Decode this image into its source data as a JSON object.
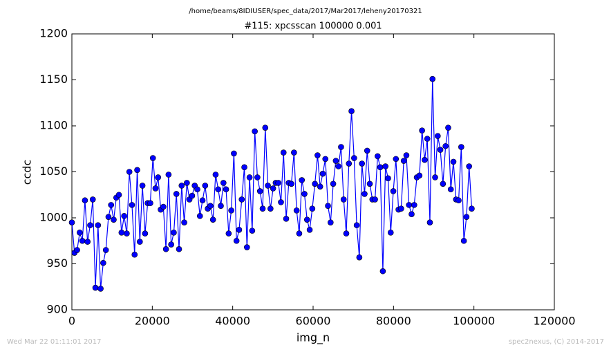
{
  "header": "/home/beams/8IDIUSER/spec_data/2017/Mar2017/leheny20170321",
  "footer": {
    "left": "Wed Mar 22 01:11:01 2017",
    "right": "spec2nexus, (C) 2014-2017"
  },
  "chart_data": {
    "type": "line",
    "title": "#115: xpcsscan 100000 0.001",
    "x_label": "img_n",
    "y_label": "ccdc",
    "marker": "circle",
    "x": [
      0,
      650,
      1300,
      1950,
      2600,
      3250,
      3900,
      4550,
      5200,
      5850,
      6500,
      7150,
      7800,
      8450,
      9100,
      9750,
      10400,
      11050,
      11700,
      12350,
      13000,
      13650,
      14300,
      14950,
      15600,
      16250,
      16900,
      17550,
      18200,
      18850,
      19500,
      20150,
      20800,
      21450,
      22100,
      22750,
      23400,
      24050,
      24700,
      25350,
      26000,
      26650,
      27300,
      27950,
      28600,
      29250,
      29900,
      30550,
      31200,
      31850,
      32500,
      33150,
      33800,
      34450,
      35100,
      35750,
      36400,
      37050,
      37700,
      38350,
      39000,
      39650,
      40300,
      40950,
      41600,
      42250,
      42900,
      43550,
      44200,
      44850,
      45500,
      46150,
      46800,
      47450,
      48100,
      48750,
      49400,
      50050,
      50700,
      51350,
      52000,
      52650,
      53300,
      53950,
      54600,
      55250,
      55900,
      56550,
      57200,
      57850,
      58500,
      59150,
      59800,
      60450,
      61100,
      61750,
      62400,
      63050,
      63700,
      64350,
      65000,
      65650,
      66300,
      66950,
      67600,
      68250,
      68900,
      69550,
      70200,
      70850,
      71500,
      72150,
      72800,
      73450,
      74100,
      74750,
      75400,
      76050,
      76700,
      77350,
      78000,
      78650,
      79300,
      79950,
      80600,
      81250,
      81900,
      82550,
      83200,
      83850,
      84500,
      85150,
      85800,
      86450,
      87100,
      87750,
      88400,
      89050,
      89700,
      90350,
      91000,
      91650,
      92300,
      92950,
      93600,
      94250,
      94900,
      95550,
      96200,
      96850,
      97500,
      98150,
      98800,
      99450
    ],
    "series": [
      {
        "name": "ccdc",
        "color": "#0000ff",
        "values": [
          995,
          962,
          965,
          984,
          975,
          1019,
          974,
          992,
          1020,
          924,
          992,
          923,
          951,
          965,
          1001,
          1014,
          998,
          1022,
          1025,
          984,
          1002,
          983,
          1050,
          1014,
          960,
          1052,
          974,
          1035,
          983,
          1016,
          1016,
          1065,
          1032,
          1044,
          1009,
          1012,
          966,
          1047,
          971,
          984,
          1026,
          966,
          1035,
          995,
          1038,
          1020,
          1024,
          1035,
          1031,
          1002,
          1019,
          1035,
          1010,
          1013,
          998,
          1047,
          1031,
          1013,
          1038,
          1031,
          983,
          1008,
          1070,
          975,
          987,
          1020,
          1055,
          968,
          1044,
          986,
          1094,
          1044,
          1029,
          1010,
          1098,
          1035,
          1010,
          1032,
          1038,
          1038,
          1017,
          1071,
          999,
          1038,
          1037,
          1071,
          1008,
          983,
          1041,
          1026,
          998,
          987,
          1010,
          1037,
          1068,
          1034,
          1048,
          1064,
          1013,
          995,
          1037,
          1062,
          1056,
          1077,
          1020,
          983,
          1059,
          1116,
          1065,
          992,
          957,
          1059,
          1026,
          1073,
          1037,
          1020,
          1020,
          1067,
          1055,
          942,
          1056,
          1043,
          984,
          1029,
          1064,
          1009,
          1010,
          1062,
          1068,
          1014,
          1004,
          1014,
          1044,
          1046,
          1095,
          1063,
          1086,
          995,
          1151,
          1044,
          1089,
          1074,
          1037,
          1078,
          1098,
          1031,
          1061,
          1020,
          1019,
          1077,
          975,
          1001,
          1056,
          1010
        ]
      }
    ],
    "xlim": [
      0,
      120000
    ],
    "xticks": [
      0,
      20000,
      40000,
      60000,
      80000,
      100000,
      120000
    ],
    "ylim": [
      900,
      1200
    ],
    "yticks": [
      900,
      950,
      1000,
      1050,
      1100,
      1150,
      1200
    ],
    "grid": false
  }
}
